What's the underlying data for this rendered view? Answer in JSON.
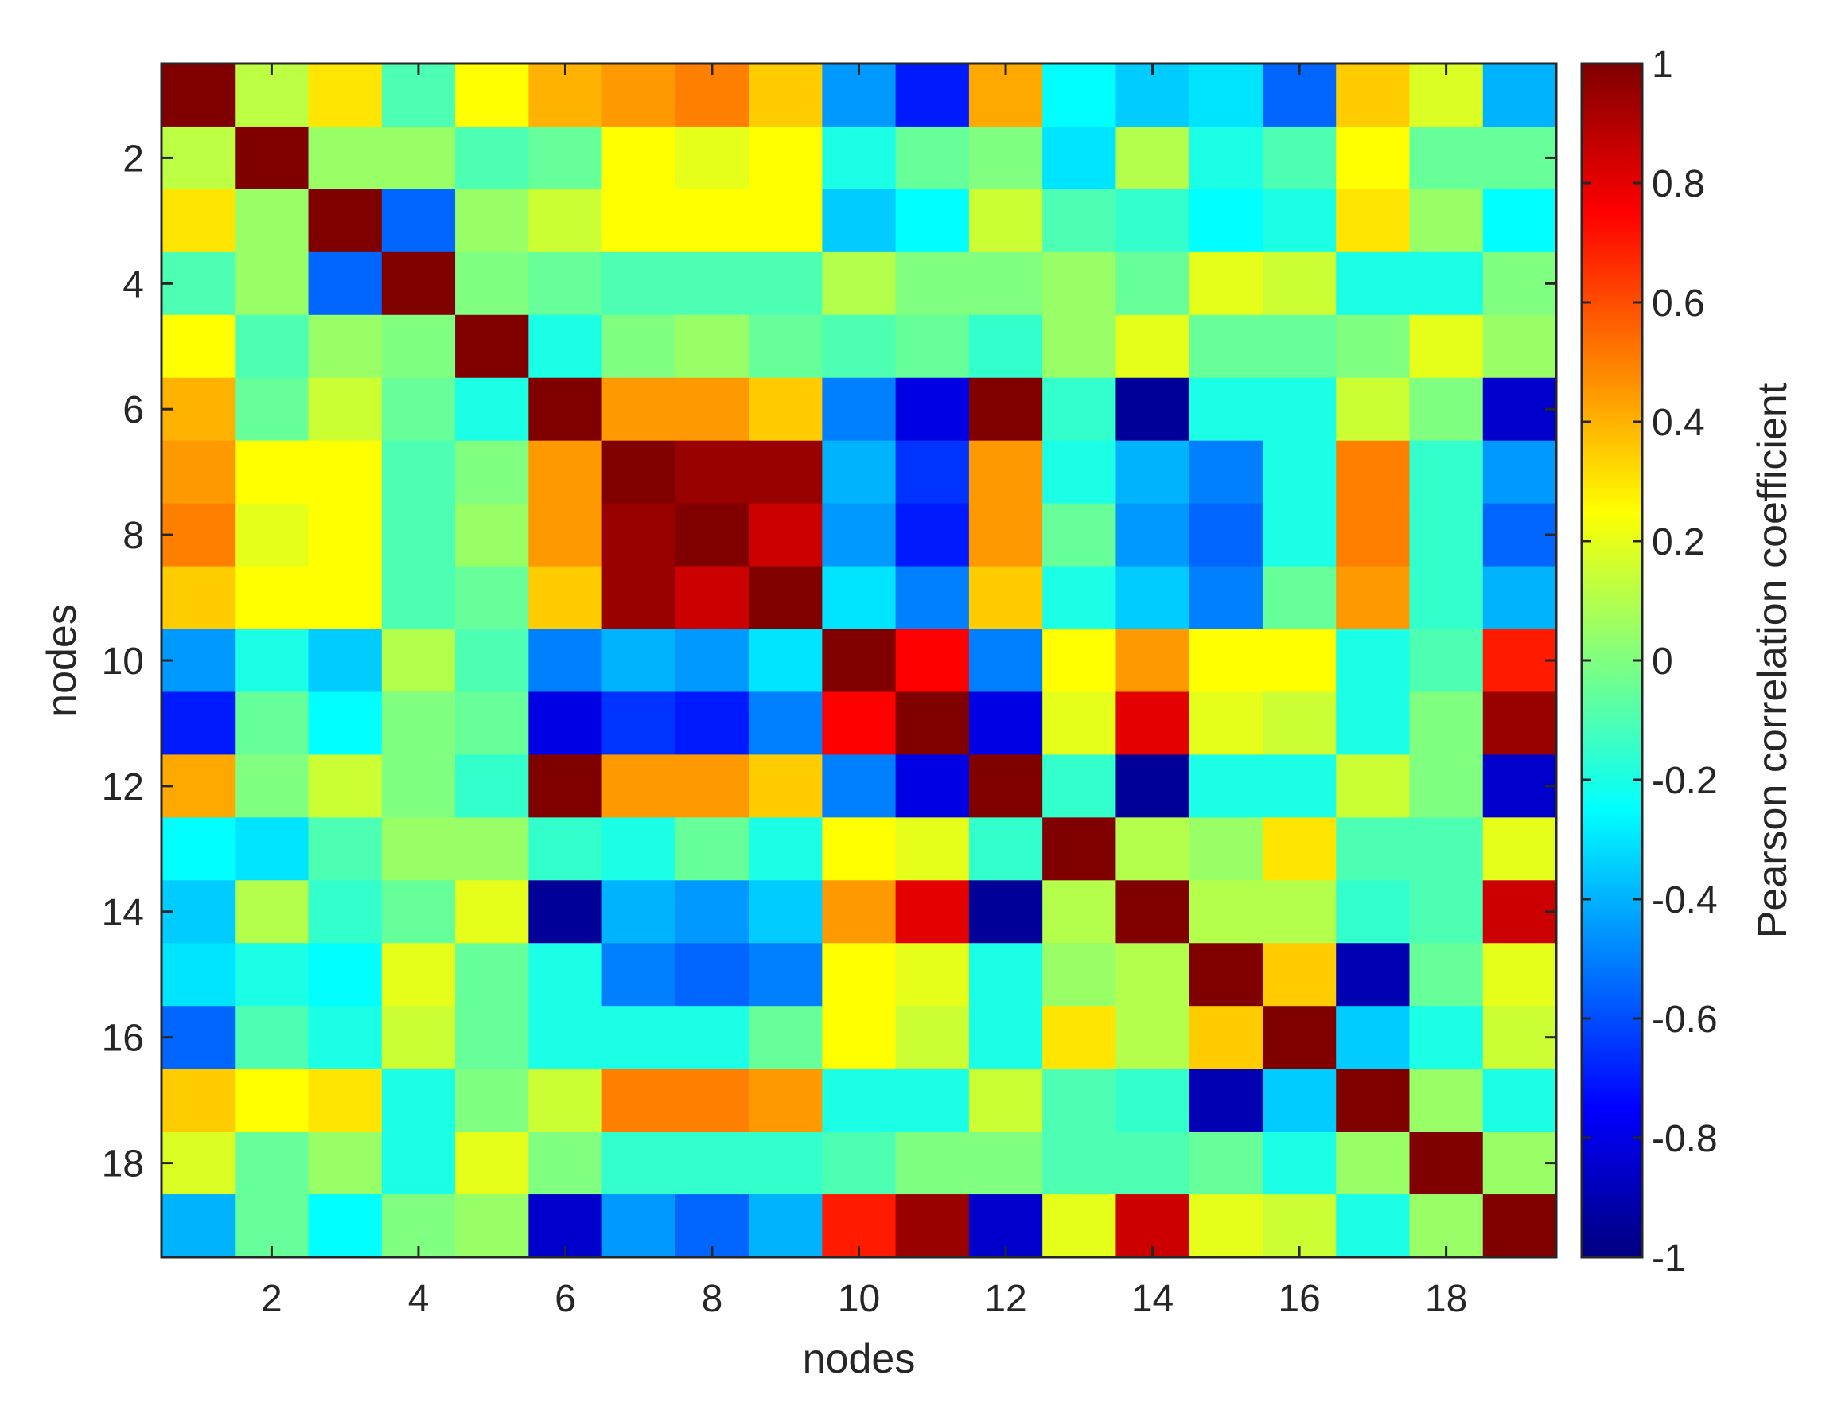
{
  "chart_data": {
    "type": "heatmap",
    "xlabel": "nodes",
    "ylabel": "nodes",
    "x_ticks": [
      2,
      4,
      6,
      8,
      10,
      12,
      14,
      16,
      18
    ],
    "y_ticks": [
      2,
      4,
      6,
      8,
      10,
      12,
      14,
      16,
      18
    ],
    "n_nodes": 19,
    "colorbar": {
      "label": "Pearson correlation coefficient",
      "range": [
        -1,
        1
      ],
      "ticks": [
        1,
        0.8,
        0.6,
        0.4,
        0.2,
        0,
        -0.2,
        -0.4,
        -0.6,
        -0.8,
        -1
      ],
      "tick_labels": [
        "1",
        "0.8",
        "0.6",
        "0.4",
        "0.2",
        "0",
        "-0.2",
        "-0.4",
        "-0.6",
        "-0.8",
        "-1"
      ],
      "colormap": "jet"
    },
    "grid": false,
    "matrix": [
      [
        1.0,
        0.12,
        0.3,
        -0.1,
        0.25,
        0.4,
        0.45,
        0.5,
        0.35,
        -0.45,
        -0.7,
        0.42,
        -0.25,
        -0.35,
        -0.3,
        -0.55,
        0.35,
        0.18,
        -0.4
      ],
      [
        0.12,
        1.0,
        0.05,
        0.05,
        -0.1,
        -0.05,
        0.25,
        0.2,
        0.25,
        -0.2,
        -0.05,
        0.0,
        -0.3,
        0.1,
        -0.2,
        -0.1,
        0.25,
        -0.05,
        -0.05
      ],
      [
        0.3,
        0.05,
        1.0,
        -0.55,
        0.05,
        0.15,
        0.25,
        0.25,
        0.25,
        -0.35,
        -0.25,
        0.15,
        -0.1,
        -0.15,
        -0.25,
        -0.2,
        0.3,
        0.05,
        -0.25
      ],
      [
        -0.1,
        0.05,
        -0.55,
        1.0,
        0.0,
        -0.05,
        -0.1,
        -0.1,
        -0.1,
        0.1,
        0.0,
        0.0,
        0.05,
        -0.05,
        0.2,
        0.15,
        -0.2,
        -0.2,
        0.0
      ],
      [
        0.25,
        -0.1,
        0.05,
        0.0,
        1.0,
        -0.2,
        0.0,
        0.05,
        -0.05,
        -0.1,
        -0.05,
        -0.15,
        0.05,
        0.2,
        -0.05,
        -0.05,
        0.0,
        0.2,
        0.05
      ],
      [
        0.4,
        -0.05,
        0.15,
        -0.05,
        -0.2,
        1.0,
        0.45,
        0.45,
        0.35,
        -0.5,
        -0.8,
        1.0,
        -0.15,
        -0.95,
        -0.2,
        -0.2,
        0.15,
        0.0,
        -0.85
      ],
      [
        0.45,
        0.25,
        0.25,
        -0.1,
        0.0,
        0.45,
        1.0,
        0.95,
        0.95,
        -0.4,
        -0.65,
        0.45,
        -0.2,
        -0.4,
        -0.5,
        -0.2,
        0.5,
        -0.15,
        -0.45
      ],
      [
        0.5,
        0.2,
        0.25,
        -0.1,
        0.05,
        0.45,
        0.95,
        1.0,
        0.85,
        -0.45,
        -0.7,
        0.45,
        -0.05,
        -0.45,
        -0.55,
        -0.2,
        0.5,
        -0.15,
        -0.55
      ],
      [
        0.35,
        0.25,
        0.25,
        -0.1,
        -0.05,
        0.35,
        0.95,
        0.85,
        1.0,
        -0.3,
        -0.5,
        0.35,
        -0.2,
        -0.35,
        -0.5,
        -0.05,
        0.45,
        -0.15,
        -0.4
      ],
      [
        -0.45,
        -0.2,
        -0.35,
        0.1,
        -0.1,
        -0.5,
        -0.4,
        -0.45,
        -0.3,
        1.0,
        0.75,
        -0.5,
        0.25,
        0.45,
        0.25,
        0.25,
        -0.2,
        -0.1,
        0.7
      ],
      [
        -0.7,
        -0.05,
        -0.25,
        0.0,
        -0.05,
        -0.8,
        -0.65,
        -0.7,
        -0.5,
        0.75,
        1.0,
        -0.8,
        0.2,
        0.8,
        0.2,
        0.15,
        -0.2,
        0.0,
        0.95
      ],
      [
        0.42,
        0.0,
        0.15,
        0.0,
        -0.15,
        1.0,
        0.45,
        0.45,
        0.35,
        -0.5,
        -0.8,
        1.0,
        -0.15,
        -0.95,
        -0.2,
        -0.2,
        0.15,
        0.0,
        -0.85
      ],
      [
        -0.25,
        -0.3,
        -0.1,
        0.05,
        0.05,
        -0.15,
        -0.2,
        -0.05,
        -0.2,
        0.25,
        0.2,
        -0.15,
        1.0,
        0.1,
        0.05,
        0.3,
        -0.1,
        -0.1,
        0.2
      ],
      [
        -0.35,
        0.1,
        -0.15,
        -0.05,
        0.2,
        -0.95,
        -0.4,
        -0.45,
        -0.35,
        0.45,
        0.8,
        -0.95,
        0.1,
        1.0,
        0.1,
        0.1,
        -0.15,
        -0.1,
        0.85
      ],
      [
        -0.3,
        -0.2,
        -0.25,
        0.2,
        -0.05,
        -0.2,
        -0.5,
        -0.55,
        -0.5,
        0.25,
        0.2,
        -0.2,
        0.05,
        0.1,
        1.0,
        0.35,
        -0.9,
        -0.05,
        0.2
      ],
      [
        -0.55,
        -0.1,
        -0.2,
        0.15,
        -0.05,
        -0.2,
        -0.2,
        -0.2,
        -0.05,
        0.25,
        0.15,
        -0.2,
        0.3,
        0.1,
        0.35,
        1.0,
        -0.35,
        -0.2,
        0.15
      ],
      [
        0.35,
        0.25,
        0.3,
        -0.2,
        0.0,
        0.15,
        0.5,
        0.5,
        0.45,
        -0.2,
        -0.2,
        0.15,
        -0.1,
        -0.15,
        -0.9,
        -0.35,
        1.0,
        0.05,
        -0.2
      ],
      [
        0.18,
        -0.05,
        0.05,
        -0.2,
        0.2,
        0.0,
        -0.15,
        -0.15,
        -0.15,
        -0.1,
        0.0,
        0.0,
        -0.1,
        -0.1,
        -0.05,
        -0.2,
        0.05,
        1.0,
        0.05
      ],
      [
        -0.4,
        -0.05,
        -0.25,
        0.0,
        0.05,
        -0.85,
        -0.45,
        -0.55,
        -0.4,
        0.7,
        0.95,
        -0.85,
        0.2,
        0.85,
        0.2,
        0.15,
        -0.2,
        0.05,
        1.0
      ]
    ]
  }
}
